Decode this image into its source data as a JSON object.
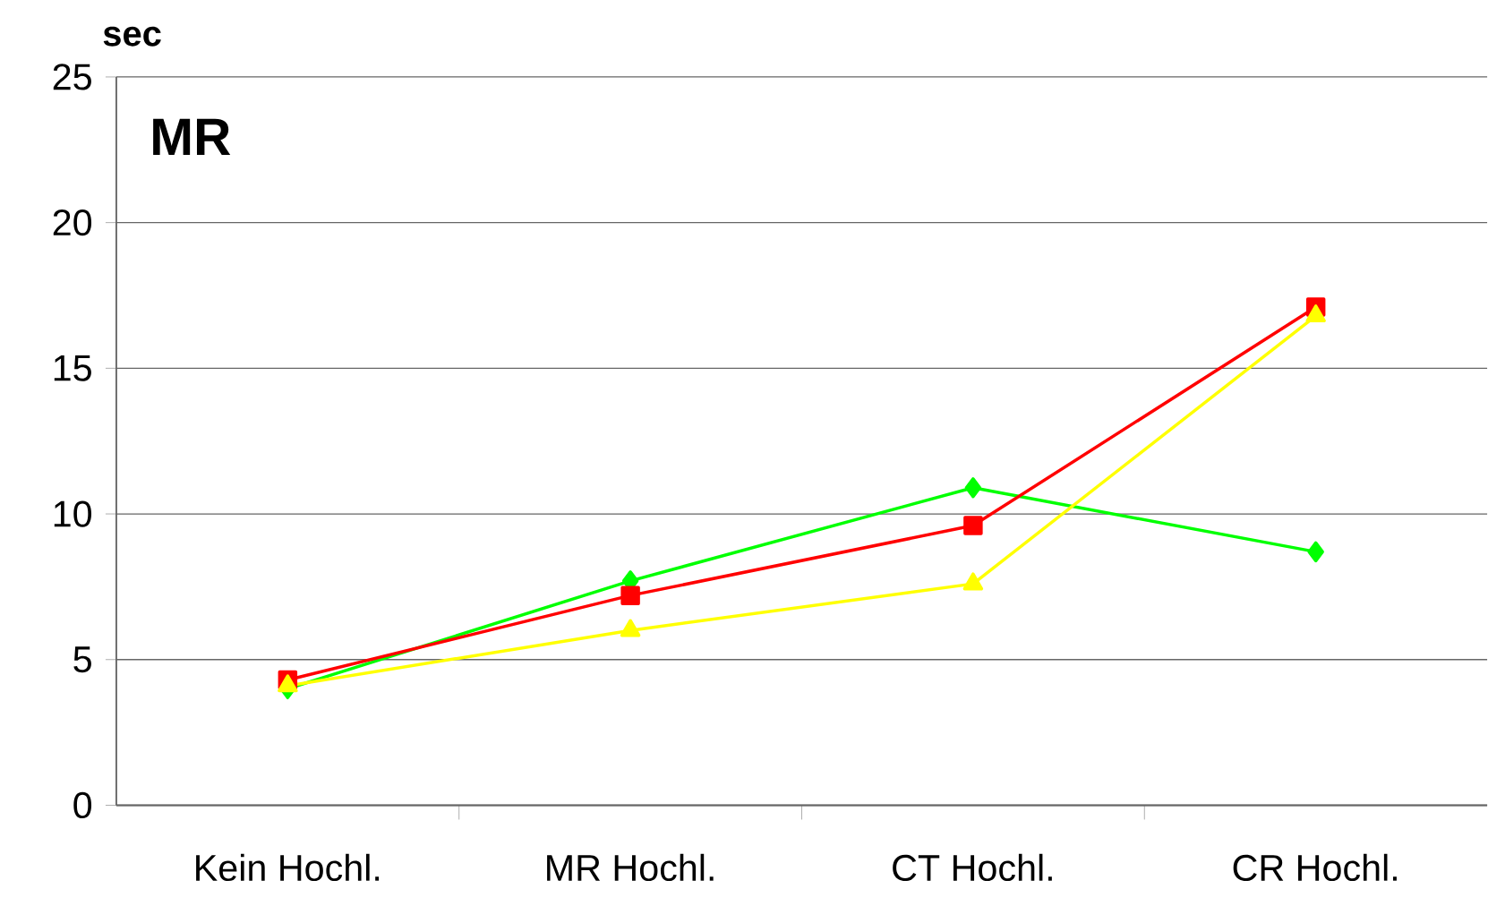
{
  "chart_data": {
    "type": "line",
    "title": "MR",
    "ylabel": "sec",
    "categories": [
      "Kein Hochl.",
      "MR Hochl.",
      "CT Hochl.",
      "CR Hochl."
    ],
    "series": [
      {
        "color": "#00ff00",
        "marker": "diamond",
        "values": [
          4.0,
          7.7,
          10.9,
          8.7
        ]
      },
      {
        "color": "#ff0000",
        "marker": "square",
        "values": [
          4.3,
          7.2,
          9.6,
          17.1
        ]
      },
      {
        "color": "#ffff00",
        "marker": "triangle",
        "values": [
          4.1,
          6.0,
          7.6,
          16.8
        ]
      }
    ],
    "ylim": [
      0,
      25
    ],
    "yticks": [
      0,
      5,
      10,
      15,
      20,
      25
    ],
    "grid": "y",
    "line_style": "solid"
  }
}
